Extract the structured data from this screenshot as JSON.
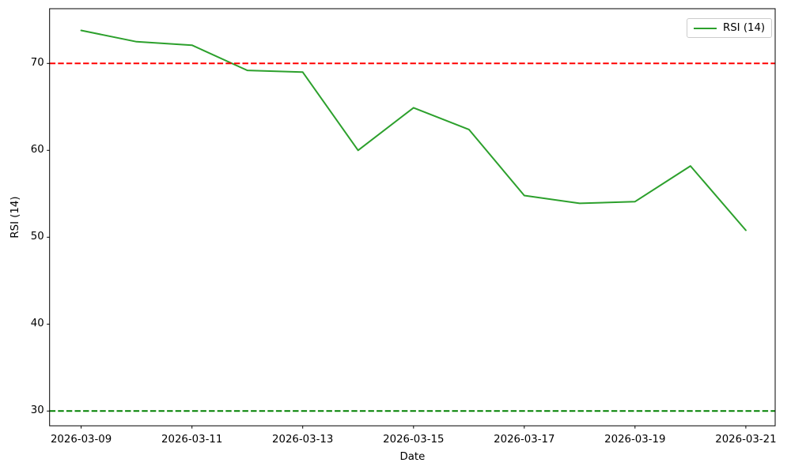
{
  "chart_data": {
    "type": "line",
    "title": "",
    "xlabel": "Date",
    "ylabel": "RSI (14)",
    "x": [
      "2026-03-09",
      "2026-03-10",
      "2026-03-11",
      "2026-03-12",
      "2026-03-13",
      "2026-03-14",
      "2026-03-15",
      "2026-03-16",
      "2026-03-17",
      "2026-03-18",
      "2026-03-19",
      "2026-03-20",
      "2026-03-21"
    ],
    "series": [
      {
        "name": "RSI (14)",
        "color": "#2ca02c",
        "style": "solid",
        "values": [
          73.8,
          72.5,
          72.1,
          69.2,
          69.0,
          60.0,
          64.9,
          62.4,
          54.8,
          53.9,
          54.1,
          58.2,
          50.8
        ]
      }
    ],
    "reference_lines": [
      {
        "name": "overbought-threshold",
        "y": 70,
        "color": "#ff0000",
        "style": "dashed"
      },
      {
        "name": "oversold-threshold",
        "y": 30,
        "color": "#008000",
        "style": "dashed"
      }
    ],
    "ylim": [
      28.3,
      76.3
    ],
    "xlim_index": [
      -0.57,
      12.53
    ],
    "yticks": [
      30,
      40,
      50,
      60,
      70
    ],
    "xticks": {
      "positions": [
        0,
        2,
        4,
        6,
        8,
        10,
        12
      ],
      "labels": [
        "2026-03-09",
        "2026-03-11",
        "2026-03-13",
        "2026-03-15",
        "2026-03-17",
        "2026-03-19",
        "2026-03-21"
      ]
    },
    "legend": {
      "location": "upper right",
      "entries": [
        {
          "label": "RSI (14)",
          "color": "#2ca02c"
        }
      ]
    },
    "grid": false,
    "axis_color": "#000000",
    "background_color": "#ffffff"
  }
}
